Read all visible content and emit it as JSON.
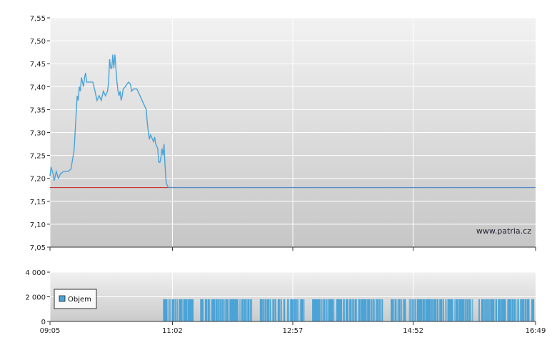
{
  "watermark": "www.patria.cz",
  "colors": {
    "price_line": "#4aa3d6",
    "reference_line": "#cc3333",
    "flat_line": "#5a8ec2",
    "volume_bar": "#4aa3d6"
  },
  "chart_data": [
    {
      "type": "line",
      "x_unit": "minutes since 09:05",
      "x_ticks": [
        "09:05",
        "11:02",
        "12:57",
        "14:52",
        "16:49"
      ],
      "xlim_labels": [
        "09:05",
        "16:49"
      ],
      "ylim": [
        7.05,
        7.55
      ],
      "y_ticks": [
        "7,05",
        "7,10",
        "7,15",
        "7,20",
        "7,25",
        "7,30",
        "7,35",
        "7,40",
        "7,45",
        "7,50",
        "7,55"
      ],
      "grid": true,
      "reference_value": 7.18,
      "series": [
        {
          "points": [
            [
              0,
              7.205
            ],
            [
              1,
              7.225
            ],
            [
              3,
              7.21
            ],
            [
              4,
              7.195
            ],
            [
              6,
              7.215
            ],
            [
              8,
              7.2
            ],
            [
              10,
              7.21
            ],
            [
              13,
              7.215
            ],
            [
              17,
              7.215
            ],
            [
              20,
              7.22
            ],
            [
              23,
              7.26
            ],
            [
              24,
              7.3
            ],
            [
              25,
              7.34
            ],
            [
              26,
              7.38
            ],
            [
              27,
              7.37
            ],
            [
              28,
              7.4
            ],
            [
              29,
              7.39
            ],
            [
              30,
              7.42
            ],
            [
              31,
              7.41
            ],
            [
              32,
              7.4
            ],
            [
              33,
              7.42
            ],
            [
              34,
              7.43
            ],
            [
              35,
              7.41
            ],
            [
              38,
              7.41
            ],
            [
              41,
              7.41
            ],
            [
              43,
              7.39
            ],
            [
              45,
              7.37
            ],
            [
              47,
              7.38
            ],
            [
              49,
              7.37
            ],
            [
              51,
              7.39
            ],
            [
              53,
              7.38
            ],
            [
              55,
              7.39
            ],
            [
              56,
              7.41
            ],
            [
              57,
              7.46
            ],
            [
              58,
              7.44
            ],
            [
              59,
              7.44
            ],
            [
              60,
              7.47
            ],
            [
              61,
              7.44
            ],
            [
              62,
              7.47
            ],
            [
              63,
              7.44
            ],
            [
              64,
              7.41
            ],
            [
              65,
              7.39
            ],
            [
              66,
              7.38
            ],
            [
              67,
              7.39
            ],
            [
              68,
              7.37
            ],
            [
              69,
              7.38
            ],
            [
              70,
              7.395
            ],
            [
              72,
              7.4
            ],
            [
              75,
              7.41
            ],
            [
              77,
              7.405
            ],
            [
              78,
              7.39
            ],
            [
              80,
              7.395
            ],
            [
              83,
              7.395
            ],
            [
              85,
              7.385
            ],
            [
              87,
              7.375
            ],
            [
              89,
              7.365
            ],
            [
              90,
              7.36
            ],
            [
              92,
              7.35
            ],
            [
              93,
              7.32
            ],
            [
              94,
              7.3
            ],
            [
              95,
              7.285
            ],
            [
              96,
              7.295
            ],
            [
              97,
              7.29
            ],
            [
              99,
              7.28
            ],
            [
              100,
              7.29
            ],
            [
              101,
              7.275
            ],
            [
              103,
              7.265
            ],
            [
              104,
              7.235
            ],
            [
              105,
              7.235
            ],
            [
              106,
              7.245
            ],
            [
              107,
              7.265
            ],
            [
              108,
              7.25
            ],
            [
              109,
              7.275
            ],
            [
              110,
              7.225
            ],
            [
              111,
              7.19
            ],
            [
              113,
              7.18
            ],
            [
              464,
              7.18
            ]
          ]
        }
      ]
    },
    {
      "type": "bar",
      "x_unit": "minutes since 09:05",
      "ylim": [
        0,
        4000
      ],
      "y_ticks": [
        "0",
        "2 000",
        "4 000"
      ],
      "legend": "Objem",
      "legend_position": "left",
      "bar_value": 1800,
      "bar_range": [
        108,
        462
      ],
      "gaps": [
        [
          138,
          143
        ],
        [
          193,
          200
        ],
        [
          243,
          250
        ],
        [
          318,
          324
        ],
        [
          404,
          409
        ]
      ]
    }
  ]
}
